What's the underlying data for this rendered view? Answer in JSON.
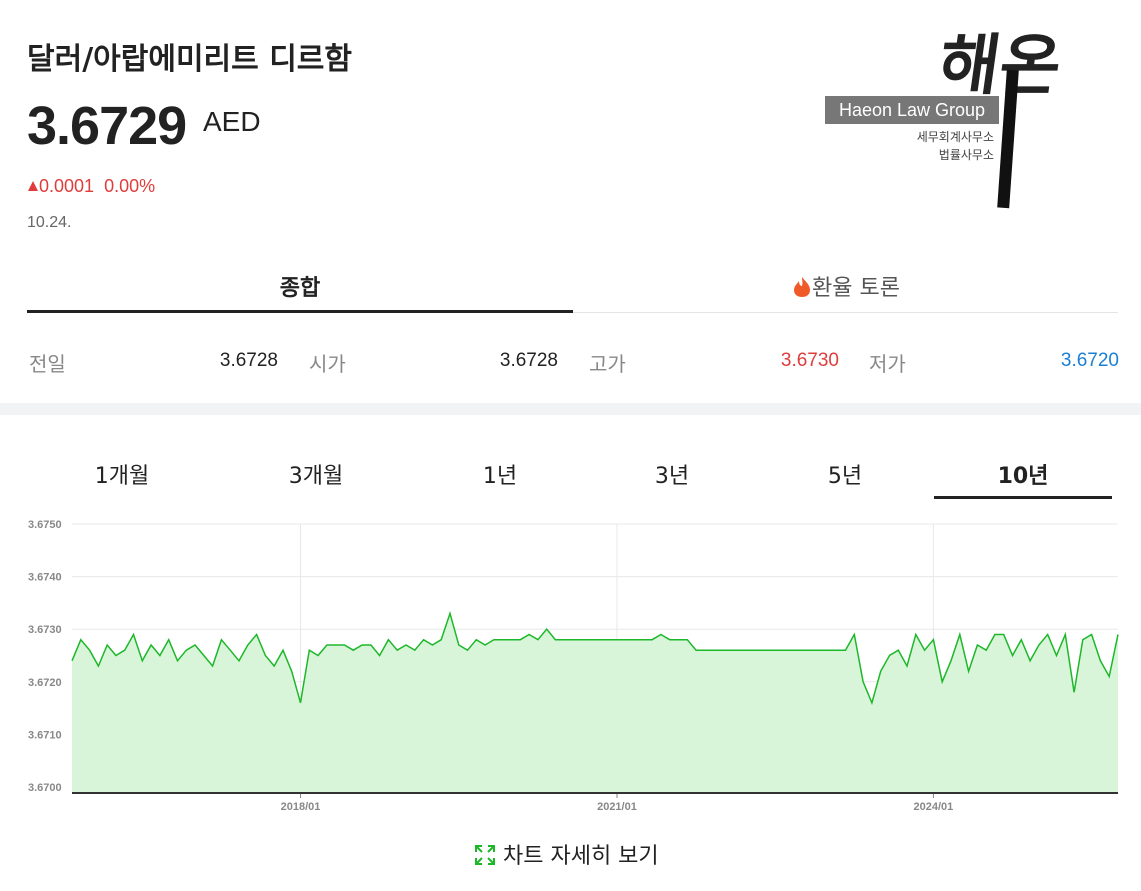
{
  "header": {
    "title": "달러/아랍에미리트 디르함",
    "price": "3.6729",
    "unit": "AED",
    "change": "0.0001",
    "change_pct": "0.00%",
    "date": "10.24."
  },
  "logo": {
    "brush": "해온",
    "name": "Haeon Law Group",
    "line1": "세무회계사무소",
    "line2": "법률사무소"
  },
  "tabs": [
    "종합",
    "환율 토론"
  ],
  "stats": [
    {
      "label": "전일",
      "value": "3.6728"
    },
    {
      "label": "시가",
      "value": "3.6728"
    },
    {
      "label": "고가",
      "value": "3.6730"
    },
    {
      "label": "저가",
      "value": "3.6720"
    }
  ],
  "periods": [
    "1개월",
    "3개월",
    "1년",
    "3년",
    "5년",
    "10년"
  ],
  "detail_link": "차트 자세히 보기",
  "chart_data": {
    "type": "area",
    "color": "#1db82a",
    "fill": "#d9f5d9",
    "grid": true,
    "x": [
      "2015/11",
      "2015/12",
      "2016/01",
      "2016/02",
      "2016/03",
      "2016/04",
      "2016/05",
      "2016/06",
      "2016/07",
      "2016/08",
      "2016/09",
      "2016/10",
      "2016/11",
      "2016/12",
      "2017/01",
      "2017/02",
      "2017/03",
      "2017/04",
      "2017/05",
      "2017/06",
      "2017/07",
      "2017/08",
      "2017/09",
      "2017/10",
      "2017/11",
      "2017/12",
      "2018/01",
      "2018/02",
      "2018/03",
      "2018/04",
      "2018/05",
      "2018/06",
      "2018/07",
      "2018/08",
      "2018/09",
      "2018/10",
      "2018/11",
      "2018/12",
      "2019/01",
      "2019/02",
      "2019/03",
      "2019/04",
      "2019/05",
      "2019/06",
      "2019/07",
      "2019/08",
      "2019/09",
      "2019/10",
      "2019/11",
      "2019/12",
      "2020/01",
      "2020/02",
      "2020/03",
      "2020/04",
      "2020/05",
      "2020/06",
      "2020/07",
      "2020/08",
      "2020/09",
      "2020/10",
      "2020/11",
      "2020/12",
      "2021/01",
      "2021/02",
      "2021/03",
      "2021/04",
      "2021/05",
      "2021/06",
      "2021/07",
      "2021/08",
      "2021/09",
      "2021/10",
      "2021/11",
      "2021/12",
      "2022/01",
      "2022/02",
      "2022/03",
      "2022/04",
      "2022/05",
      "2022/06",
      "2022/07",
      "2022/08",
      "2022/09",
      "2022/10",
      "2022/11",
      "2022/12",
      "2023/01",
      "2023/02",
      "2023/03",
      "2023/04",
      "2023/05",
      "2023/06",
      "2023/07",
      "2023/08",
      "2023/09",
      "2023/10",
      "2023/11",
      "2023/12",
      "2024/01",
      "2024/02",
      "2024/03",
      "2024/04",
      "2024/05",
      "2024/06",
      "2024/07",
      "2024/08",
      "2024/09",
      "2024/10",
      "2024/11",
      "2024/12",
      "2025/01",
      "2025/02",
      "2025/03",
      "2025/04",
      "2025/05",
      "2025/06",
      "2025/07",
      "2025/08",
      "2025/09",
      "2025/10"
    ],
    "values": [
      3.6724,
      3.6728,
      3.6726,
      3.6723,
      3.6727,
      3.6725,
      3.6726,
      3.6729,
      3.6724,
      3.6727,
      3.6725,
      3.6728,
      3.6724,
      3.6726,
      3.6727,
      3.6725,
      3.6723,
      3.6728,
      3.6726,
      3.6724,
      3.6727,
      3.6729,
      3.6725,
      3.6723,
      3.6726,
      3.6722,
      3.6716,
      3.6726,
      3.6725,
      3.6727,
      3.6727,
      3.6727,
      3.6726,
      3.6727,
      3.6727,
      3.6725,
      3.6728,
      3.6726,
      3.6727,
      3.6726,
      3.6728,
      3.6727,
      3.6728,
      3.6733,
      3.6727,
      3.6726,
      3.6728,
      3.6727,
      3.6728,
      3.6728,
      3.6728,
      3.6728,
      3.6729,
      3.6728,
      3.673,
      3.6728,
      3.6728,
      3.6728,
      3.6728,
      3.6728,
      3.6728,
      3.6728,
      3.6728,
      3.6728,
      3.6728,
      3.6728,
      3.6728,
      3.6729,
      3.6728,
      3.6728,
      3.6728,
      3.6726,
      3.6726,
      3.6726,
      3.6726,
      3.6726,
      3.6726,
      3.6726,
      3.6726,
      3.6726,
      3.6726,
      3.6726,
      3.6726,
      3.6726,
      3.6726,
      3.6726,
      3.6726,
      3.6726,
      3.6726,
      3.6729,
      3.672,
      3.6716,
      3.6722,
      3.6725,
      3.6726,
      3.6723,
      3.6729,
      3.6726,
      3.6728,
      3.672,
      3.6724,
      3.6729,
      3.6722,
      3.6727,
      3.6726,
      3.6729,
      3.6729,
      3.6725,
      3.6728,
      3.6724,
      3.6727,
      3.6729,
      3.6725,
      3.6729,
      3.6718,
      3.6728,
      3.6729,
      3.6724,
      3.6721,
      3.6729
    ],
    "ylim": [
      3.67,
      3.675
    ],
    "yticks": [
      {
        "value": 3.67,
        "label": "3.6700"
      },
      {
        "value": 3.671,
        "label": "3.6710"
      },
      {
        "value": 3.672,
        "label": "3.6720"
      },
      {
        "value": 3.673,
        "label": "3.6730"
      },
      {
        "value": 3.674,
        "label": "3.6740"
      },
      {
        "value": 3.675,
        "label": "3.6750"
      }
    ],
    "xticks": [
      "2018/01",
      "2021/01",
      "2024/01"
    ]
  }
}
